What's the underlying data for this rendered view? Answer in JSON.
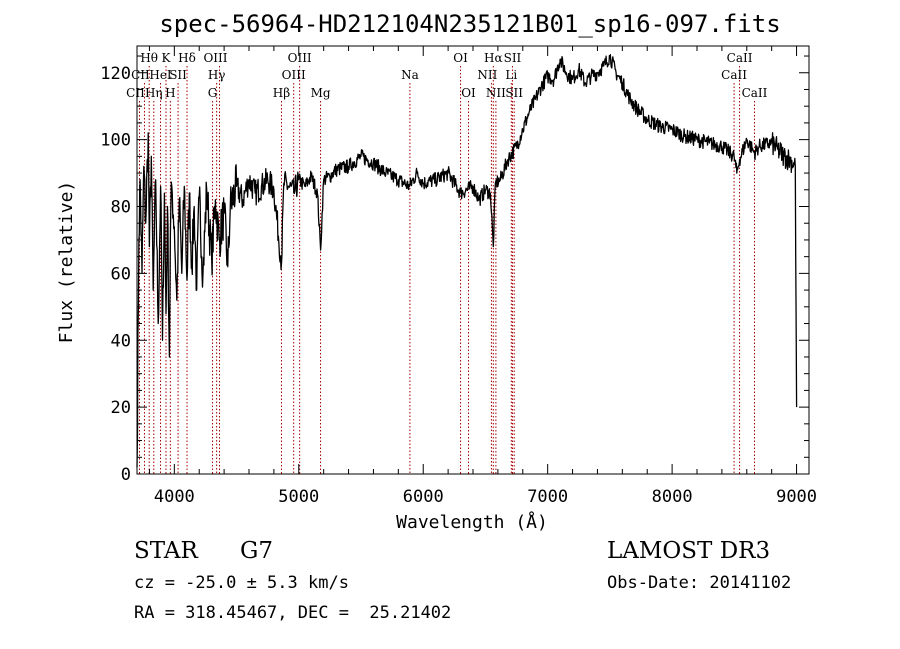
{
  "chart_data": {
    "type": "line",
    "title": "spec-56964-HD212104N235121B01_sp16-097.fits",
    "xlabel": "Wavelength (Å)",
    "ylabel": "Flux (relative)",
    "xlim": [
      3700,
      9100
    ],
    "ylim": [
      0,
      128
    ],
    "xticks": [
      4000,
      5000,
      6000,
      7000,
      8000,
      9000
    ],
    "xtick_labels": [
      "4000",
      "5000",
      "6000",
      "7000",
      "8000",
      "9000"
    ],
    "yticks": [
      0,
      20,
      40,
      60,
      80,
      100,
      120
    ],
    "ytick_labels": [
      "0",
      "20",
      "40",
      "60",
      "80",
      "100",
      "120"
    ],
    "series": [
      {
        "name": "flux",
        "x": [
          3700,
          3715,
          3725,
          3740,
          3755,
          3770,
          3790,
          3800,
          3815,
          3830,
          3850,
          3870,
          3890,
          3905,
          3920,
          3933,
          3945,
          3960,
          3968,
          3980,
          4000,
          4020,
          4040,
          4060,
          4080,
          4102,
          4120,
          4140,
          4160,
          4180,
          4200,
          4230,
          4260,
          4300,
          4330,
          4360,
          4400,
          4430,
          4450,
          4500,
          4550,
          4600,
          4650,
          4700,
          4750,
          4800,
          4861,
          4880,
          4920,
          4960,
          5000,
          5050,
          5100,
          5150,
          5175,
          5200,
          5250,
          5300,
          5400,
          5500,
          5600,
          5700,
          5800,
          5890,
          5950,
          6000,
          6100,
          6200,
          6300,
          6400,
          6450,
          6500,
          6540,
          6563,
          6580,
          6620,
          6680,
          6750,
          6800,
          6850,
          6900,
          6950,
          7000,
          7050,
          7100,
          7150,
          7200,
          7250,
          7300,
          7350,
          7400,
          7450,
          7500,
          7550,
          7600,
          7650,
          7700,
          7800,
          7900,
          8000,
          8100,
          8200,
          8300,
          8400,
          8498,
          8520,
          8542,
          8600,
          8662,
          8700,
          8800,
          8850,
          8900,
          8950,
          8990,
          9000
        ],
        "values": [
          2,
          70,
          88,
          60,
          92,
          75,
          102,
          68,
          95,
          55,
          88,
          45,
          86,
          40,
          84,
          48,
          80,
          35,
          72,
          86,
          74,
          52,
          82,
          60,
          86,
          58,
          84,
          62,
          80,
          55,
          83,
          60,
          85,
          64,
          82,
          70,
          78,
          62,
          80,
          86,
          82,
          88,
          84,
          86,
          88,
          85,
          63,
          87,
          86,
          84,
          88,
          86,
          89,
          84,
          67,
          88,
          89,
          91,
          92,
          95,
          93,
          90,
          88,
          86,
          90,
          87,
          88,
          90,
          84,
          86,
          82,
          85,
          84,
          68,
          87,
          88,
          94,
          98,
          103,
          108,
          112,
          116,
          119,
          118,
          124,
          120,
          118,
          121,
          117,
          119,
          120,
          122,
          125,
          120,
          117,
          113,
          110,
          106,
          104,
          103,
          101,
          100,
          99,
          98,
          95,
          90,
          94,
          100,
          96,
          98,
          99,
          97,
          95,
          94,
          92,
          20
        ]
      }
    ],
    "line_colors": {
      "spectrum": "#000000",
      "lines": "#a40000"
    },
    "spectral_lines": [
      {
        "label": "CII",
        "wavelength": 3720,
        "row": 2,
        "dx": -4
      },
      {
        "label": "Hθ",
        "wavelength": 3798,
        "row": 0,
        "dx": 0
      },
      {
        "label": "CII",
        "wavelength": 3760,
        "row": 1,
        "dx": -4
      },
      {
        "label": "Hη",
        "wavelength": 3835,
        "row": 2,
        "dx": 0
      },
      {
        "label": "HeI",
        "wavelength": 3889,
        "row": 1,
        "dx": 0
      },
      {
        "label": "K",
        "wavelength": 3933,
        "row": 0,
        "dx": 0
      },
      {
        "label": "H",
        "wavelength": 3968,
        "row": 2,
        "dx": 0
      },
      {
        "label": "SII",
        "wavelength": 4030,
        "row": 1,
        "dx": 0
      },
      {
        "label": "Hδ",
        "wavelength": 4102,
        "row": 0,
        "dx": 0
      },
      {
        "label": "OIII",
        "wavelength": 4363,
        "row": 0,
        "dx": -4
      },
      {
        "label": "Hγ",
        "wavelength": 4340,
        "row": 1,
        "dx": 0
      },
      {
        "label": "G",
        "wavelength": 4307,
        "row": 2,
        "dx": 0
      },
      {
        "label": "Hβ",
        "wavelength": 4861,
        "row": 2,
        "dx": 0
      },
      {
        "label": "OIII",
        "wavelength": 5007,
        "row": 0,
        "dx": 0
      },
      {
        "label": "OIII",
        "wavelength": 4959,
        "row": 1,
        "dx": 0
      },
      {
        "label": "Mg",
        "wavelength": 5175,
        "row": 2,
        "dx": 0
      },
      {
        "label": "Na",
        "wavelength": 5893,
        "row": 1,
        "dx": 0
      },
      {
        "label": "OI",
        "wavelength": 6300,
        "row": 0,
        "dx": 0
      },
      {
        "label": "OI",
        "wavelength": 6364,
        "row": 2,
        "dx": 0
      },
      {
        "label": "Hα",
        "wavelength": 6563,
        "row": 0,
        "dx": 0
      },
      {
        "label": "NII",
        "wavelength": 6548,
        "row": 1,
        "dx": -4
      },
      {
        "label": "NII",
        "wavelength": 6584,
        "row": 2,
        "dx": 0
      },
      {
        "label": "SII",
        "wavelength": 6717,
        "row": 0,
        "dx": 0
      },
      {
        "label": "Li",
        "wavelength": 6708,
        "row": 1,
        "dx": 0
      },
      {
        "label": "SII",
        "wavelength": 6731,
        "row": 2,
        "dx": 0
      },
      {
        "label": "CaII",
        "wavelength": 8542,
        "row": 0,
        "dx": 0
      },
      {
        "label": "CaII",
        "wavelength": 8498,
        "row": 1,
        "dx": 0
      },
      {
        "label": "CaII",
        "wavelength": 8662,
        "row": 2,
        "dx": 0
      }
    ]
  },
  "info": {
    "object_type": "STAR",
    "subclass": "G7",
    "survey": "LAMOST DR3",
    "cz": "cz = -25.0 ± 5.3 km/s",
    "obs_date": "Obs-Date: 20141102",
    "coords": "RA = 318.45467, DEC =  25.21402"
  }
}
